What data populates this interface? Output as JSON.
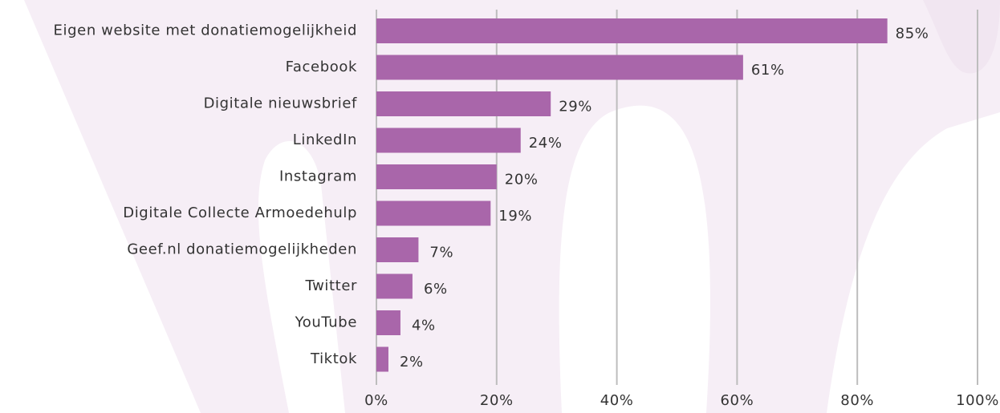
{
  "chart_data": {
    "type": "bar",
    "orientation": "horizontal",
    "categories": [
      "Eigen website met donatiemogelijkheid",
      "Facebook",
      "Digitale nieuwsbrief",
      "LinkedIn",
      "Instagram",
      "Digitale Collecte Armoedehulp",
      "Geef.nl donatiemogelijkheden",
      "Twitter",
      "YouTube",
      "Tiktok"
    ],
    "values": [
      85,
      61,
      29,
      24,
      20,
      19,
      7,
      6,
      4,
      2
    ],
    "value_labels": [
      "85%",
      "61%",
      "29%",
      "24%",
      "20%",
      "19%",
      "7%",
      "6%",
      "4%",
      "2%"
    ],
    "color": "#a966aa",
    "xlim": [
      0,
      100
    ],
    "xticks": [
      {
        "value": 0,
        "label": "0%"
      },
      {
        "value": 20,
        "label": "20%"
      },
      {
        "value": 40,
        "label": "40%"
      },
      {
        "value": 60,
        "label": "60%"
      },
      {
        "value": 80,
        "label": "80%"
      },
      {
        "value": 100,
        "label": "100%"
      }
    ],
    "grid": true
  }
}
